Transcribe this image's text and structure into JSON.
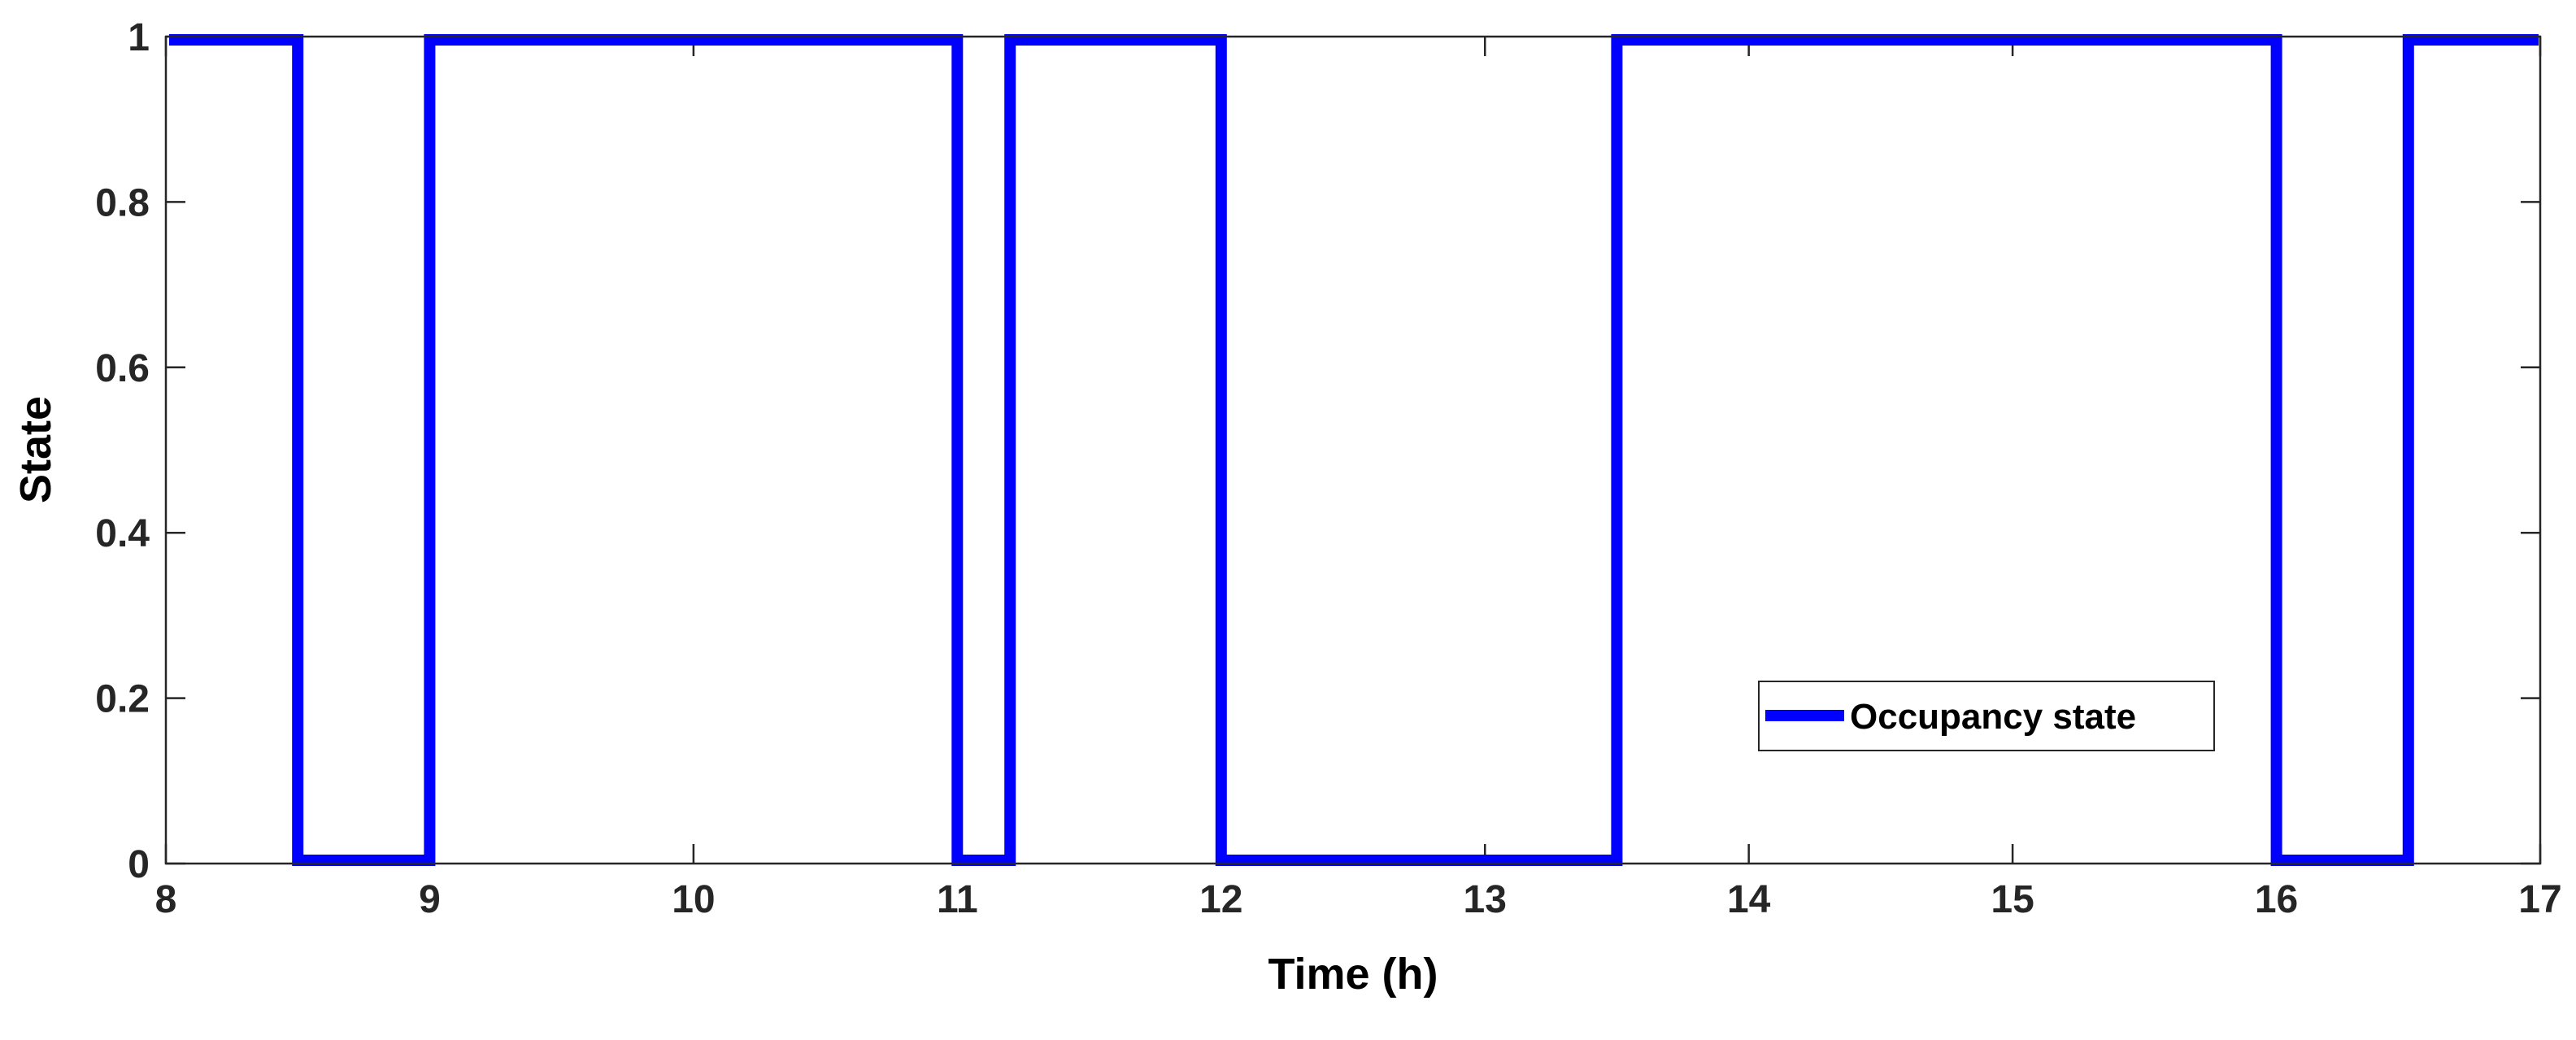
{
  "chart_data": {
    "type": "line",
    "title": "",
    "xlabel": "Time (h)",
    "ylabel": "State",
    "xlim": [
      8,
      17
    ],
    "ylim": [
      0,
      1
    ],
    "x_ticks": [
      8,
      9,
      10,
      11,
      12,
      13,
      14,
      15,
      16,
      17
    ],
    "y_ticks": [
      0,
      0.2,
      0.4,
      0.6,
      0.8,
      1
    ],
    "x_tick_labels": [
      "8",
      "9",
      "10",
      "11",
      "12",
      "13",
      "14",
      "15",
      "16",
      "17"
    ],
    "y_tick_labels": [
      "0",
      "0.2",
      "0.4",
      "0.6",
      "0.8",
      "1"
    ],
    "grid": false,
    "legend_position": "lower-right",
    "series": [
      {
        "name": "Occupancy state",
        "color": "#0000ff",
        "step": true,
        "x": [
          8,
          8.5,
          8.5,
          9,
          9,
          11,
          11,
          11.2,
          11.2,
          12,
          12,
          13.5,
          13.5,
          16,
          16,
          16.5,
          16.5,
          17
        ],
        "y": [
          1,
          1,
          0,
          0,
          1,
          1,
          0,
          0,
          1,
          1,
          0,
          0,
          1,
          1,
          0,
          0,
          1,
          1
        ]
      }
    ]
  }
}
